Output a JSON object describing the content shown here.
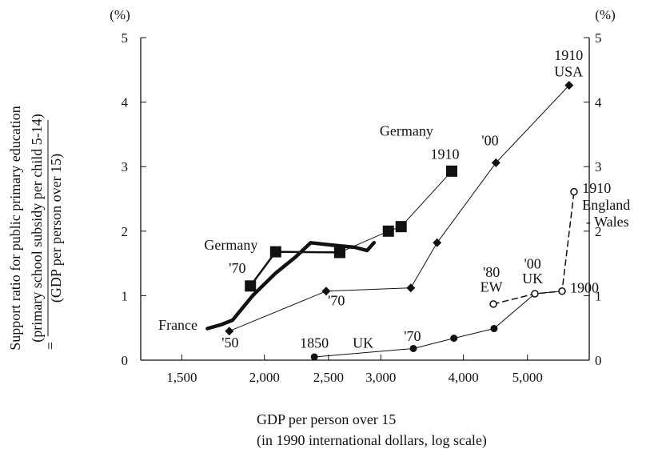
{
  "chart_data": {
    "type": "line",
    "x_scale": "log",
    "xlim": [
      1300,
      6200
    ],
    "ylim": [
      0,
      5
    ],
    "unit_label_left": "(%)",
    "unit_label_right": "(%)",
    "xlabel_line1": "GDP per person over 15",
    "xlabel_line2": "(in 1990 international dollars, log scale)",
    "ylabel_line1": "Support ratio for public primary education",
    "ylabel_line2": "(primary school subsidy per child 5-14)",
    "ylabel_eq": "=",
    "ylabel_line3": "(GDP per person over 15)",
    "x_ticks": [
      {
        "value": 1500,
        "label": "1,500"
      },
      {
        "value": 2000,
        "label": "2,000"
      },
      {
        "value": 2500,
        "label": "2,500"
      },
      {
        "value": 3000,
        "label": "3,000"
      },
      {
        "value": 4000,
        "label": "4,000"
      },
      {
        "value": 5000,
        "label": "5,000"
      }
    ],
    "y_ticks": [
      0,
      1,
      2,
      3,
      4,
      5
    ],
    "series": [
      {
        "name": "France",
        "marker": "none",
        "stroke": "#111111",
        "line_width": 4.5,
        "dashed": false,
        "points": [
          [
            1640,
            0.49
          ],
          [
            1720,
            0.55
          ],
          [
            1790,
            0.62
          ],
          [
            1920,
            1.0
          ],
          [
            2080,
            1.35
          ],
          [
            2230,
            1.6
          ],
          [
            2350,
            1.82
          ],
          [
            2550,
            1.78
          ],
          [
            2740,
            1.75
          ],
          [
            2860,
            1.7
          ],
          [
            2930,
            1.82
          ]
        ]
      },
      {
        "name": "Germany",
        "marker": "square",
        "stroke": "#111111",
        "line_width": 2.5,
        "dashed": false,
        "points": [
          [
            1905,
            1.15
          ],
          [
            2080,
            1.68
          ],
          [
            2600,
            1.67
          ]
        ]
      },
      {
        "name": "Germany",
        "marker": "square",
        "stroke": "#111111",
        "line_width": 1,
        "dashed": false,
        "points": [
          [
            2600,
            1.67
          ],
          [
            3080,
            2.0
          ],
          [
            3220,
            2.07
          ],
          [
            3840,
            2.93
          ]
        ]
      },
      {
        "name": "USA",
        "marker": "diamond",
        "stroke": "#111111",
        "line_width": 1,
        "dashed": false,
        "points": [
          [
            1770,
            0.45
          ],
          [
            2480,
            1.07
          ],
          [
            3330,
            1.12
          ],
          [
            3650,
            1.82
          ],
          [
            4480,
            3.06
          ],
          [
            5780,
            4.26
          ]
        ]
      },
      {
        "name": "UK",
        "marker": "circle",
        "stroke": "#111111",
        "line_width": 1,
        "dashed": false,
        "points": [
          [
            2380,
            0.05
          ],
          [
            3360,
            0.18
          ],
          [
            3870,
            0.34
          ],
          [
            4450,
            0.49
          ],
          [
            5130,
            1.03
          ],
          [
            5640,
            1.07
          ]
        ]
      },
      {
        "name": "England - Wales",
        "marker": "open-circle",
        "stroke": "#111111",
        "line_width": 1.5,
        "dashed": true,
        "points": [
          [
            4440,
            0.87
          ],
          [
            5130,
            1.03
          ],
          [
            5640,
            1.07
          ],
          [
            5880,
            2.61
          ]
        ]
      }
    ],
    "annotations": [
      {
        "text": "France",
        "x": 1480,
        "y": 0.47,
        "anchor": "middle"
      },
      {
        "text": "'50",
        "x": 1775,
        "y": 0.2,
        "anchor": "middle"
      },
      {
        "text": "Germany",
        "x": 1780,
        "y": 1.71,
        "anchor": "middle"
      },
      {
        "text": "'70",
        "x": 1820,
        "y": 1.35,
        "anchor": "middle"
      },
      {
        "text": "'70",
        "x": 2570,
        "y": 0.85,
        "anchor": "middle"
      },
      {
        "text": "Germany",
        "x": 3280,
        "y": 3.48,
        "anchor": "middle"
      },
      {
        "text": "1910",
        "x": 3750,
        "y": 3.12,
        "anchor": "middle"
      },
      {
        "text": "'00",
        "x": 4390,
        "y": 3.33,
        "anchor": "middle"
      },
      {
        "text": "1910",
        "x": 5770,
        "y": 4.65,
        "anchor": "middle"
      },
      {
        "text": "USA",
        "x": 5770,
        "y": 4.4,
        "anchor": "middle"
      },
      {
        "text": "1850",
        "x": 2380,
        "y": 0.19,
        "anchor": "middle"
      },
      {
        "text": "UK",
        "x": 2820,
        "y": 0.19,
        "anchor": "middle"
      },
      {
        "text": "'70",
        "x": 3350,
        "y": 0.3,
        "anchor": "middle"
      },
      {
        "text": "'80",
        "x": 4410,
        "y": 1.29,
        "anchor": "middle"
      },
      {
        "text": "EW",
        "x": 4410,
        "y": 1.06,
        "anchor": "middle"
      },
      {
        "text": "'00",
        "x": 5090,
        "y": 1.42,
        "anchor": "middle"
      },
      {
        "text": "UK",
        "x": 5090,
        "y": 1.19,
        "anchor": "middle"
      },
      {
        "text": "1900",
        "x": 5800,
        "y": 1.05,
        "anchor": "start"
      },
      {
        "text": "1910",
        "x": 6050,
        "y": 2.59,
        "anchor": "start"
      },
      {
        "text": "England",
        "x": 6050,
        "y": 2.33,
        "anchor": "start"
      },
      {
        "text": "- Wales",
        "x": 6130,
        "y": 2.07,
        "anchor": "start"
      }
    ]
  }
}
